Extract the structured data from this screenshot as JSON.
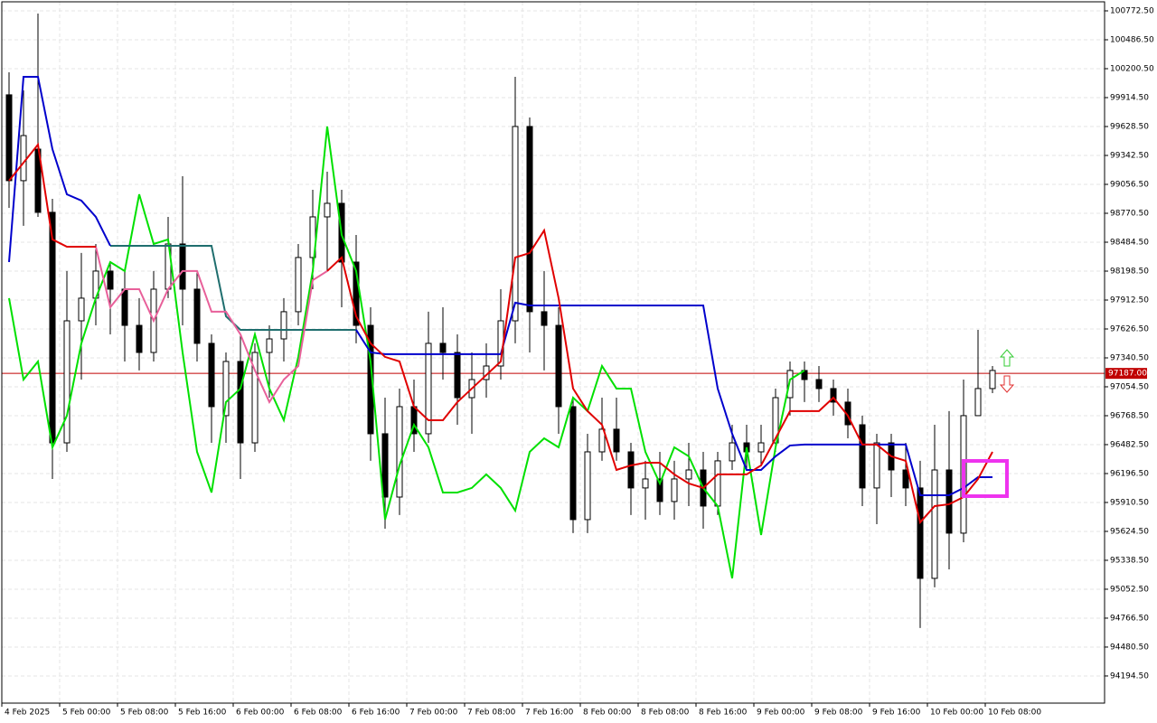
{
  "chart_data": {
    "type": "candlestick",
    "ylim": [
      93926,
      100862
    ],
    "yticks": [
      {
        "value": 100772.5,
        "label": "100772.50"
      },
      {
        "value": 100486.5,
        "label": "100486.50"
      },
      {
        "value": 100200.5,
        "label": "100200.50"
      },
      {
        "value": 99914.5,
        "label": "99914.50"
      },
      {
        "value": 99628.5,
        "label": "99628.50"
      },
      {
        "value": 99342.5,
        "label": "99342.50"
      },
      {
        "value": 99056.5,
        "label": "99056.50"
      },
      {
        "value": 98770.5,
        "label": "98770.50"
      },
      {
        "value": 98484.5,
        "label": "98484.50"
      },
      {
        "value": 98198.5,
        "label": "98198.50"
      },
      {
        "value": 97912.5,
        "label": "97912.50"
      },
      {
        "value": 97626.5,
        "label": "97626.50"
      },
      {
        "value": 97340.5,
        "label": "97340.50"
      },
      {
        "value": 97054.5,
        "label": "97054.50"
      },
      {
        "value": 96768.5,
        "label": "96768.50"
      },
      {
        "value": 96482.5,
        "label": "96482.50"
      },
      {
        "value": 96196.5,
        "label": "96196.50"
      },
      {
        "value": 95910.5,
        "label": "95910.50"
      },
      {
        "value": 95624.5,
        "label": "95624.50"
      },
      {
        "value": 95338.5,
        "label": "95338.50"
      },
      {
        "value": 95052.5,
        "label": "95052.50"
      },
      {
        "value": 94766.5,
        "label": "94766.50"
      },
      {
        "value": 94480.5,
        "label": "94480.50"
      },
      {
        "value": 94194.5,
        "label": "94194.50"
      }
    ],
    "grid": true,
    "time_labels": [
      "4 Feb 2025",
      "5 Feb 00:00",
      "5 Feb 08:00",
      "5 Feb 16:00",
      "6 Feb 00:00",
      "6 Feb 08:00",
      "6 Feb 16:00",
      "7 Feb 00:00",
      "7 Feb 08:00",
      "7 Feb 16:00",
      "8 Feb 00:00",
      "8 Feb 08:00",
      "8 Feb 16:00",
      "9 Feb 00:00",
      "9 Feb 08:00",
      "9 Feb 16:00",
      "10 Feb 00:00",
      "10 Feb 08:00"
    ],
    "open": [
      99942,
      99093,
      99405,
      98780,
      96500,
      97707,
      97931,
      98199,
      98020,
      97662,
      97394,
      98020,
      98467,
      98020,
      97484,
      96769,
      97305,
      96500,
      97394,
      97528,
      97797,
      98333,
      98735,
      98869,
      98288,
      97662,
      96590,
      95964,
      96858,
      96590,
      97484,
      97394,
      96947,
      97126,
      97260,
      97707,
      99629,
      97797,
      97662,
      96858,
      95741,
      96411,
      96635,
      96411,
      96054,
      96143,
      95920,
      96143,
      96232,
      95875,
      96322,
      96500,
      96411,
      96500,
      96947,
      97216,
      97126,
      97037,
      96903,
      96679,
      96054,
      96500,
      96232,
      96054,
      95160,
      96232,
      95607,
      96769,
      97037
    ],
    "high": [
      100165,
      99986,
      100746,
      98914,
      98199,
      98378,
      98467,
      98288,
      98199,
      97931,
      98199,
      98735,
      99137,
      98199,
      97573,
      97394,
      97573,
      97484,
      97662,
      97931,
      98467,
      99003,
      99182,
      99003,
      98556,
      97841,
      96947,
      97037,
      97126,
      97797,
      97841,
      97573,
      97394,
      97484,
      98020,
      100120,
      99718,
      98199,
      97841,
      96947,
      96590,
      96947,
      96947,
      96500,
      96322,
      96411,
      96322,
      96500,
      96411,
      96411,
      96679,
      96679,
      96679,
      97037,
      97305,
      97305,
      97260,
      97126,
      97037,
      96769,
      96590,
      96590,
      96500,
      96322,
      96679,
      96814,
      97126,
      97618,
      97260
    ],
    "low": [
      98824,
      98646,
      98735,
      96143,
      96411,
      97126,
      97662,
      97573,
      97305,
      97216,
      97305,
      97931,
      97662,
      97305,
      96500,
      96500,
      96143,
      96411,
      96947,
      97305,
      97662,
      98020,
      98199,
      97841,
      97484,
      96322,
      95651,
      95786,
      96411,
      96500,
      97126,
      96679,
      96590,
      96947,
      97126,
      97484,
      97394,
      97216,
      96590,
      95607,
      95607,
      96322,
      96322,
      95786,
      95741,
      95786,
      95741,
      95875,
      95651,
      95786,
      96232,
      96232,
      96277,
      96411,
      96769,
      96903,
      96903,
      96769,
      96545,
      95875,
      95696,
      95964,
      95875,
      94669,
      95071,
      95249,
      95517,
      96769,
      96992
    ],
    "close": [
      99093,
      99539,
      98780,
      96500,
      97707,
      97931,
      98199,
      98020,
      97662,
      97394,
      98020,
      98467,
      98020,
      97484,
      96858,
      97305,
      96500,
      97394,
      97528,
      97797,
      98333,
      98735,
      98869,
      98288,
      97662,
      96590,
      95964,
      96858,
      96590,
      97484,
      97394,
      96947,
      97126,
      97260,
      97707,
      99629,
      97797,
      97662,
      96858,
      95741,
      96411,
      96635,
      96411,
      96054,
      96143,
      95920,
      96143,
      96232,
      95875,
      96322,
      96500,
      96411,
      96500,
      96947,
      97216,
      97126,
      97037,
      96903,
      96679,
      96054,
      96500,
      96232,
      96054,
      95160,
      96232,
      95607,
      96769,
      97037,
      97216
    ],
    "bull_color": "#ffffff",
    "bear_color": "#000000",
    "wick_color": "#000000",
    "overlays": [
      {
        "color": "#00e000",
        "values": [
          97931,
          97126,
          97305,
          96456,
          96769,
          97484,
          97931,
          98288,
          98199,
          98958,
          98467,
          98512,
          97394,
          96411,
          96009,
          96903,
          97037,
          97573,
          97037,
          96724,
          97350,
          98199,
          99629,
          98556,
          98199,
          97305,
          95741,
          96277,
          96679,
          96456,
          96009,
          96009,
          96054,
          96188,
          96054,
          95830,
          96411,
          96545,
          96456,
          96947,
          96814,
          97260,
          97037,
          97037,
          96411,
          96098,
          96456,
          96367,
          96054,
          95875,
          95160,
          96456,
          95589,
          96456,
          97126,
          97216,
          null,
          null,
          null,
          null,
          null,
          null,
          null,
          null,
          null,
          null,
          null,
          null,
          null
        ]
      },
      {
        "color": "#1f6e6e",
        "values": [
          null,
          null,
          null,
          null,
          null,
          null,
          null,
          98449,
          98449,
          98449,
          98449,
          98449,
          98449,
          98449,
          98449,
          97752,
          97618,
          97618,
          97618,
          97618,
          97618,
          97618,
          97618,
          97618,
          97618,
          null,
          null,
          null,
          null,
          null,
          null,
          null,
          null,
          null,
          null,
          null,
          null,
          null,
          null,
          null,
          null,
          null,
          null,
          null,
          null,
          null,
          null,
          null,
          null,
          null,
          null,
          null,
          null,
          null,
          null,
          null,
          null,
          null,
          null,
          null,
          null,
          null,
          null,
          null,
          null,
          null,
          null,
          null,
          null
        ]
      },
      {
        "color": "#0000cc",
        "values": [
          98288,
          100120,
          100120,
          99405,
          98958,
          98896,
          98735,
          98449,
          null,
          null,
          null,
          null,
          null,
          null,
          null,
          null,
          null,
          null,
          null,
          null,
          null,
          null,
          null,
          null,
          97618,
          97394,
          97377,
          97377,
          97377,
          97377,
          97377,
          97377,
          97377,
          97377,
          97377,
          97886,
          97859,
          97859,
          97859,
          97859,
          97859,
          97859,
          97859,
          97859,
          97859,
          97859,
          97859,
          97859,
          97859,
          97037,
          96590,
          96232,
          96232,
          96367,
          96474,
          96483,
          96483,
          96483,
          96483,
          96483,
          96483,
          96483,
          96483,
          95982,
          95982,
          95982,
          96054,
          96161,
          96161
        ]
      },
      {
        "color": "#e8609a",
        "values": [
          null,
          null,
          null,
          null,
          null,
          null,
          98440,
          97841,
          98020,
          98020,
          97707,
          98020,
          98199,
          98199,
          97797,
          97797,
          97573,
          97216,
          96903,
          97126,
          97260,
          98109,
          98199,
          null,
          null,
          null,
          null,
          null,
          null,
          null,
          null,
          null,
          null,
          null,
          null,
          null,
          null,
          null,
          null,
          null,
          null,
          null,
          null,
          null,
          null,
          null,
          null,
          null,
          null,
          null,
          null,
          null,
          null,
          null,
          null,
          null,
          null,
          null,
          null,
          null,
          null,
          null,
          null,
          null,
          null,
          null,
          null,
          null,
          null
        ]
      },
      {
        "color": "#e00000",
        "values": [
          99093,
          99271,
          99450,
          98512,
          98440,
          98440,
          98440,
          null,
          null,
          null,
          null,
          null,
          null,
          null,
          null,
          null,
          null,
          null,
          null,
          null,
          null,
          null,
          98199,
          98333,
          97752,
          97484,
          97350,
          97305,
          96858,
          96724,
          96724,
          96903,
          97037,
          97171,
          97305,
          98333,
          98378,
          98601,
          97931,
          97037,
          96814,
          96679,
          96232,
          96277,
          96304,
          96304,
          96188,
          96098,
          96054,
          96188,
          96188,
          96188,
          96277,
          96545,
          96814,
          96814,
          96814,
          96947,
          96769,
          96483,
          96483,
          96367,
          96322,
          95714,
          95875,
          95893,
          95964,
          96143,
          96411
        ]
      }
    ],
    "current_price": {
      "value": 97187,
      "label": "97187.00"
    },
    "current_price_color": "#c00000"
  }
}
